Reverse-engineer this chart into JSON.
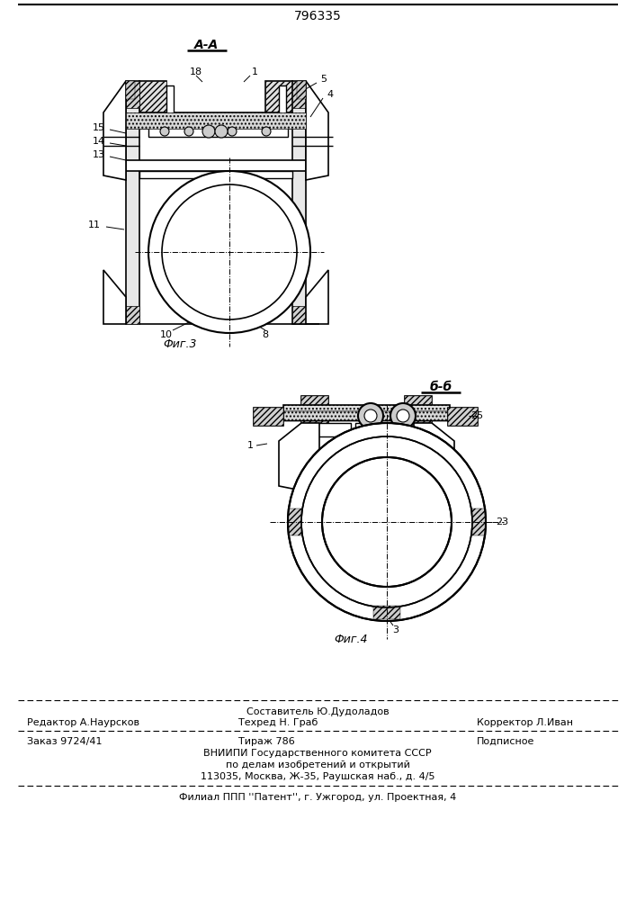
{
  "patent_number": "796335",
  "bg_color": "#ffffff",
  "drawing_color": "#000000",
  "top_label": "A-A",
  "bottom_label": "б-б",
  "fig3_label": "Фиг.3",
  "fig4_label": "Фиг.4",
  "footer": {
    "line1_center": "Составитель Ю.Дудоладов",
    "line2_left": "Редактор А.Наурсков",
    "line2_center": "Техред Н. Граб",
    "line2_right": "Корректор Л.Иван",
    "line3_left": "Заказ 9724/41",
    "line3_center": "Тираж 786",
    "line3_right": "Подписное",
    "line4": "ВНИИПИ Государственного комитета СССР",
    "line5": "по делам изобретений и открытий",
    "line6": "113035, Москва, Ж-35, Раушская наб., д. 4/5",
    "line7": "Филиал ППП ''Патент'', г. Ужгород, ул. Проектная, 4"
  }
}
